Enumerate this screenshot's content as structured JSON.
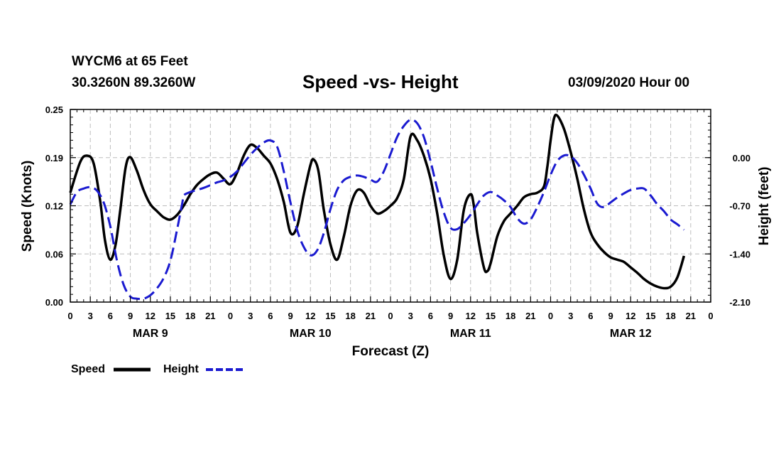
{
  "header": {
    "station": "WYCM6 at 65 Feet",
    "coords": "30.3260N 89.3260W",
    "title": "Speed -vs- Height",
    "stamp": "03/09/2020 Hour 00"
  },
  "chart_data": {
    "type": "line",
    "title": "Speed -vs- Height",
    "xlabel": "Forecast (Z)",
    "ylabel_left": "Speed (Knots)",
    "ylabel_right": "Height (feet)",
    "x_range_hours": [
      0,
      96
    ],
    "x_tick_step_hours": 3,
    "x_tick_labels": [
      "0",
      "3",
      "6",
      "9",
      "12",
      "15",
      "18",
      "21",
      "0",
      "3",
      "6",
      "9",
      "12",
      "15",
      "18",
      "21",
      "0",
      "3",
      "6",
      "9",
      "12",
      "15",
      "18",
      "21",
      "0",
      "3",
      "6",
      "9",
      "12",
      "15",
      "18",
      "21",
      "0"
    ],
    "day_labels": [
      {
        "label": "MAR 9",
        "hour": 12
      },
      {
        "label": "MAR 10",
        "hour": 36
      },
      {
        "label": "MAR 11",
        "hour": 60
      },
      {
        "label": "MAR 12",
        "hour": 84
      }
    ],
    "left_axis": {
      "min": 0.0,
      "max": 0.25,
      "ticks": [
        "0.00",
        "0.06",
        "0.12",
        "0.19",
        "0.25"
      ],
      "tick_values": [
        0.0,
        0.0625,
        0.125,
        0.1875,
        0.25
      ]
    },
    "right_axis": {
      "min": -2.1,
      "max": 0.7,
      "ticks": [
        "0.00",
        "-0.70",
        "-1.40",
        "-2.10"
      ],
      "tick_values": [
        0.0,
        -0.7,
        -1.4,
        -2.1
      ]
    },
    "grid": true,
    "legend": [
      {
        "label": "Speed",
        "color": "#000000",
        "style": "solid"
      },
      {
        "label": "Height",
        "color": "#1a1ad0",
        "style": "dashed"
      }
    ],
    "series": [
      {
        "name": "Speed",
        "axis": "left",
        "color": "#000000",
        "points": [
          [
            0,
            0.142
          ],
          [
            1.5,
            0.182
          ],
          [
            2.5,
            0.19
          ],
          [
            3.5,
            0.18
          ],
          [
            4.5,
            0.13
          ],
          [
            5.2,
            0.08
          ],
          [
            6,
            0.055
          ],
          [
            6.8,
            0.075
          ],
          [
            7.5,
            0.12
          ],
          [
            8.3,
            0.175
          ],
          [
            9,
            0.188
          ],
          [
            10,
            0.17
          ],
          [
            11,
            0.145
          ],
          [
            12,
            0.127
          ],
          [
            13,
            0.118
          ],
          [
            14,
            0.11
          ],
          [
            15,
            0.107
          ],
          [
            16,
            0.113
          ],
          [
            17,
            0.125
          ],
          [
            18,
            0.14
          ],
          [
            19,
            0.152
          ],
          [
            20,
            0.16
          ],
          [
            21,
            0.166
          ],
          [
            22,
            0.168
          ],
          [
            23,
            0.16
          ],
          [
            24,
            0.153
          ],
          [
            25,
            0.168
          ],
          [
            26,
            0.19
          ],
          [
            27,
            0.204
          ],
          [
            28,
            0.2
          ],
          [
            29,
            0.19
          ],
          [
            30,
            0.18
          ],
          [
            31,
            0.16
          ],
          [
            32,
            0.13
          ],
          [
            33,
            0.09
          ],
          [
            34,
            0.098
          ],
          [
            35,
            0.14
          ],
          [
            36,
            0.178
          ],
          [
            36.5,
            0.185
          ],
          [
            37.2,
            0.17
          ],
          [
            38,
            0.12
          ],
          [
            39,
            0.075
          ],
          [
            40,
            0.055
          ],
          [
            41,
            0.085
          ],
          [
            42,
            0.125
          ],
          [
            43,
            0.145
          ],
          [
            44,
            0.142
          ],
          [
            45,
            0.125
          ],
          [
            46,
            0.115
          ],
          [
            47,
            0.118
          ],
          [
            48,
            0.125
          ],
          [
            49,
            0.135
          ],
          [
            50,
            0.16
          ],
          [
            51,
            0.215
          ],
          [
            52,
            0.21
          ],
          [
            53,
            0.19
          ],
          [
            54,
            0.16
          ],
          [
            55,
            0.115
          ],
          [
            56,
            0.06
          ],
          [
            57,
            0.03
          ],
          [
            58,
            0.055
          ],
          [
            59,
            0.12
          ],
          [
            60,
            0.14
          ],
          [
            60.5,
            0.125
          ],
          [
            61,
            0.09
          ],
          [
            62,
            0.045
          ],
          [
            62.5,
            0.04
          ],
          [
            63,
            0.05
          ],
          [
            64,
            0.085
          ],
          [
            65,
            0.105
          ],
          [
            66,
            0.115
          ],
          [
            67,
            0.125
          ],
          [
            68,
            0.136
          ],
          [
            69,
            0.14
          ],
          [
            70,
            0.142
          ],
          [
            71,
            0.15
          ],
          [
            71.5,
            0.175
          ],
          [
            72,
            0.21
          ],
          [
            72.5,
            0.238
          ],
          [
            73,
            0.242
          ],
          [
            74,
            0.225
          ],
          [
            75,
            0.195
          ],
          [
            76,
            0.16
          ],
          [
            77,
            0.12
          ],
          [
            78,
            0.09
          ],
          [
            79,
            0.075
          ],
          [
            80,
            0.065
          ],
          [
            81,
            0.058
          ],
          [
            82,
            0.055
          ],
          [
            83,
            0.052
          ],
          [
            84,
            0.045
          ],
          [
            85,
            0.038
          ],
          [
            86,
            0.03
          ],
          [
            87,
            0.024
          ],
          [
            88,
            0.02
          ],
          [
            89,
            0.018
          ],
          [
            90,
            0.02
          ],
          [
            91,
            0.032
          ],
          [
            92,
            0.06
          ]
        ]
      },
      {
        "name": "Height",
        "axis": "right",
        "color": "#1a1ad0",
        "points": [
          [
            0,
            -0.68
          ],
          [
            1,
            -0.5
          ],
          [
            2,
            -0.45
          ],
          [
            3,
            -0.43
          ],
          [
            4,
            -0.48
          ],
          [
            5,
            -0.65
          ],
          [
            6,
            -1.0
          ],
          [
            7,
            -1.5
          ],
          [
            8,
            -1.85
          ],
          [
            9,
            -2.02
          ],
          [
            10,
            -2.05
          ],
          [
            11,
            -2.05
          ],
          [
            12,
            -2.0
          ],
          [
            13,
            -1.9
          ],
          [
            14,
            -1.75
          ],
          [
            15,
            -1.5
          ],
          [
            16,
            -1.05
          ],
          [
            16.8,
            -0.65
          ],
          [
            17,
            -0.55
          ],
          [
            18,
            -0.5
          ],
          [
            19,
            -0.47
          ],
          [
            20,
            -0.44
          ],
          [
            21,
            -0.4
          ],
          [
            22,
            -0.36
          ],
          [
            23,
            -0.33
          ],
          [
            24,
            -0.28
          ],
          [
            25,
            -0.2
          ],
          [
            26,
            -0.08
          ],
          [
            27,
            0.04
          ],
          [
            28,
            0.14
          ],
          [
            29,
            0.22
          ],
          [
            30,
            0.25
          ],
          [
            31,
            0.16
          ],
          [
            32,
            -0.2
          ],
          [
            33,
            -0.65
          ],
          [
            34,
            -1.05
          ],
          [
            35,
            -1.3
          ],
          [
            36,
            -1.42
          ],
          [
            37,
            -1.35
          ],
          [
            38,
            -1.1
          ],
          [
            39,
            -0.75
          ],
          [
            40,
            -0.47
          ],
          [
            41,
            -0.33
          ],
          [
            42,
            -0.28
          ],
          [
            43,
            -0.26
          ],
          [
            44,
            -0.28
          ],
          [
            45,
            -0.32
          ],
          [
            46,
            -0.35
          ],
          [
            47,
            -0.2
          ],
          [
            48,
            0.05
          ],
          [
            49,
            0.3
          ],
          [
            50,
            0.46
          ],
          [
            51,
            0.55
          ],
          [
            52,
            0.5
          ],
          [
            53,
            0.3
          ],
          [
            54,
            -0.05
          ],
          [
            55,
            -0.45
          ],
          [
            56,
            -0.8
          ],
          [
            57,
            -1.02
          ],
          [
            58,
            -1.04
          ],
          [
            59,
            -0.95
          ],
          [
            60,
            -0.83
          ],
          [
            61,
            -0.68
          ],
          [
            62,
            -0.55
          ],
          [
            63,
            -0.5
          ],
          [
            64,
            -0.55
          ],
          [
            65,
            -0.62
          ],
          [
            66,
            -0.72
          ],
          [
            67,
            -0.88
          ],
          [
            68,
            -0.96
          ],
          [
            69,
            -0.9
          ],
          [
            70,
            -0.72
          ],
          [
            71,
            -0.5
          ],
          [
            72,
            -0.25
          ],
          [
            73,
            -0.05
          ],
          [
            74,
            0.03
          ],
          [
            75,
            0.02
          ],
          [
            76,
            -0.08
          ],
          [
            77,
            -0.25
          ],
          [
            78,
            -0.45
          ],
          [
            79,
            -0.67
          ],
          [
            80,
            -0.72
          ],
          [
            81,
            -0.65
          ],
          [
            82,
            -0.58
          ],
          [
            83,
            -0.52
          ],
          [
            84,
            -0.47
          ],
          [
            85,
            -0.45
          ],
          [
            86,
            -0.45
          ],
          [
            87,
            -0.55
          ],
          [
            88,
            -0.68
          ],
          [
            89,
            -0.78
          ],
          [
            90,
            -0.9
          ],
          [
            91,
            -0.97
          ],
          [
            92,
            -1.05
          ]
        ]
      }
    ]
  }
}
